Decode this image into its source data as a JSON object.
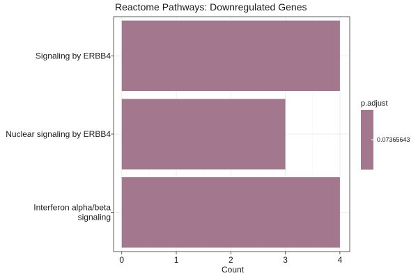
{
  "chart_data": {
    "type": "bar",
    "orientation": "horizontal",
    "title": "Reactome Pathways: Downregulated Genes",
    "xlabel": "Count",
    "ylabel": "",
    "categories": [
      "Signaling by ERBB4",
      "Nuclear signaling by ERBB4",
      "Interferon alpha/beta signaling"
    ],
    "category_label_lines": [
      [
        "Signaling by ERBB4"
      ],
      [
        "Nuclear signaling by ERBB4"
      ],
      [
        "Interferon alpha/beta",
        "signaling"
      ]
    ],
    "values": [
      4,
      3,
      4
    ],
    "xlim": [
      -0.15,
      4.18
    ],
    "x_ticks": [
      0,
      1,
      2,
      3,
      4
    ],
    "grid": true,
    "bar_color": "#a3788f",
    "legend": {
      "title": "p.adjust",
      "placement": "right",
      "value_label": "0.07365643",
      "color": "#a3788f"
    }
  },
  "colors": {
    "panel_border": "#333333",
    "grid_major": "#ebebeb",
    "grid_minor": "#f5f5f5",
    "text": "#1a1a1a"
  }
}
